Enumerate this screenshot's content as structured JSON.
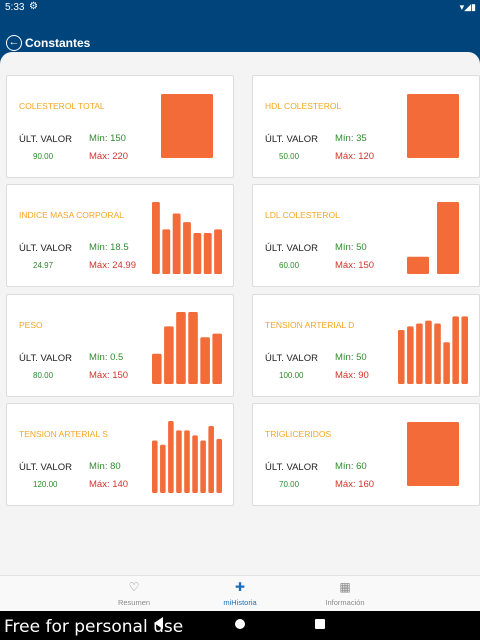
{
  "status_bar": {
    "time": "5:33",
    "gear_icon": "⚙",
    "signals": "▾◢▮"
  },
  "app_bar": {
    "back_icon": "←",
    "title": "Constantes"
  },
  "labels": {
    "ult": "ÚLT. VALOR"
  },
  "accent_color": "#f26b38",
  "cards": [
    {
      "title": "COLESTEROL TOTAL",
      "value": "90.00",
      "min": "Mín: 150",
      "max": "Máx: 220",
      "bars": [
        1.0
      ]
    },
    {
      "title": "HDL COLESTEROL",
      "value": "50.00",
      "min": "Mín: 35",
      "max": "Máx: 120",
      "bars": [
        1.0
      ]
    },
    {
      "title": "INDICE MASA CORPORAL",
      "value": "24.97",
      "min": "Mín: 18.5",
      "max": "Máx: 24.99",
      "bars": [
        1.0,
        0.62,
        0.84,
        0.72,
        0.57,
        0.57,
        0.62
      ]
    },
    {
      "title": "LDL COLESTEROL",
      "value": "60.00",
      "min": "Mín: 50",
      "max": "Máx: 150",
      "bars": [
        0.24,
        1.0
      ]
    },
    {
      "title": "PESO",
      "value": "80.00",
      "min": "Mín: 0.5",
      "max": "Máx: 150",
      "bars": [
        0.42,
        0.8,
        1.0,
        1.0,
        0.65,
        0.7
      ]
    },
    {
      "title": "TENSION ARTERIAL D",
      "value": "100.00",
      "min": "Mín: 50",
      "max": "Máx: 90",
      "bars": [
        0.75,
        0.8,
        0.84,
        0.88,
        0.84,
        0.58,
        0.94,
        0.94
      ]
    },
    {
      "title": "TENSION ARTERIAL S",
      "value": "120.00",
      "min": "Mín: 80",
      "max": "Máx: 140",
      "bars": [
        0.73,
        0.67,
        1.0,
        0.87,
        0.87,
        0.8,
        0.73,
        0.93,
        0.75
      ]
    },
    {
      "title": "TRIGLICERIDOS",
      "value": "70.00",
      "min": "Mín: 60",
      "max": "Máx: 160",
      "bars": [
        1.0
      ]
    }
  ],
  "bottom_nav": [
    {
      "icon": "♡",
      "label": "Resumen"
    },
    {
      "icon": "✚",
      "label": "miHistoria"
    },
    {
      "icon": "▦",
      "label": "Información"
    }
  ],
  "watermark": "Free for personal use"
}
